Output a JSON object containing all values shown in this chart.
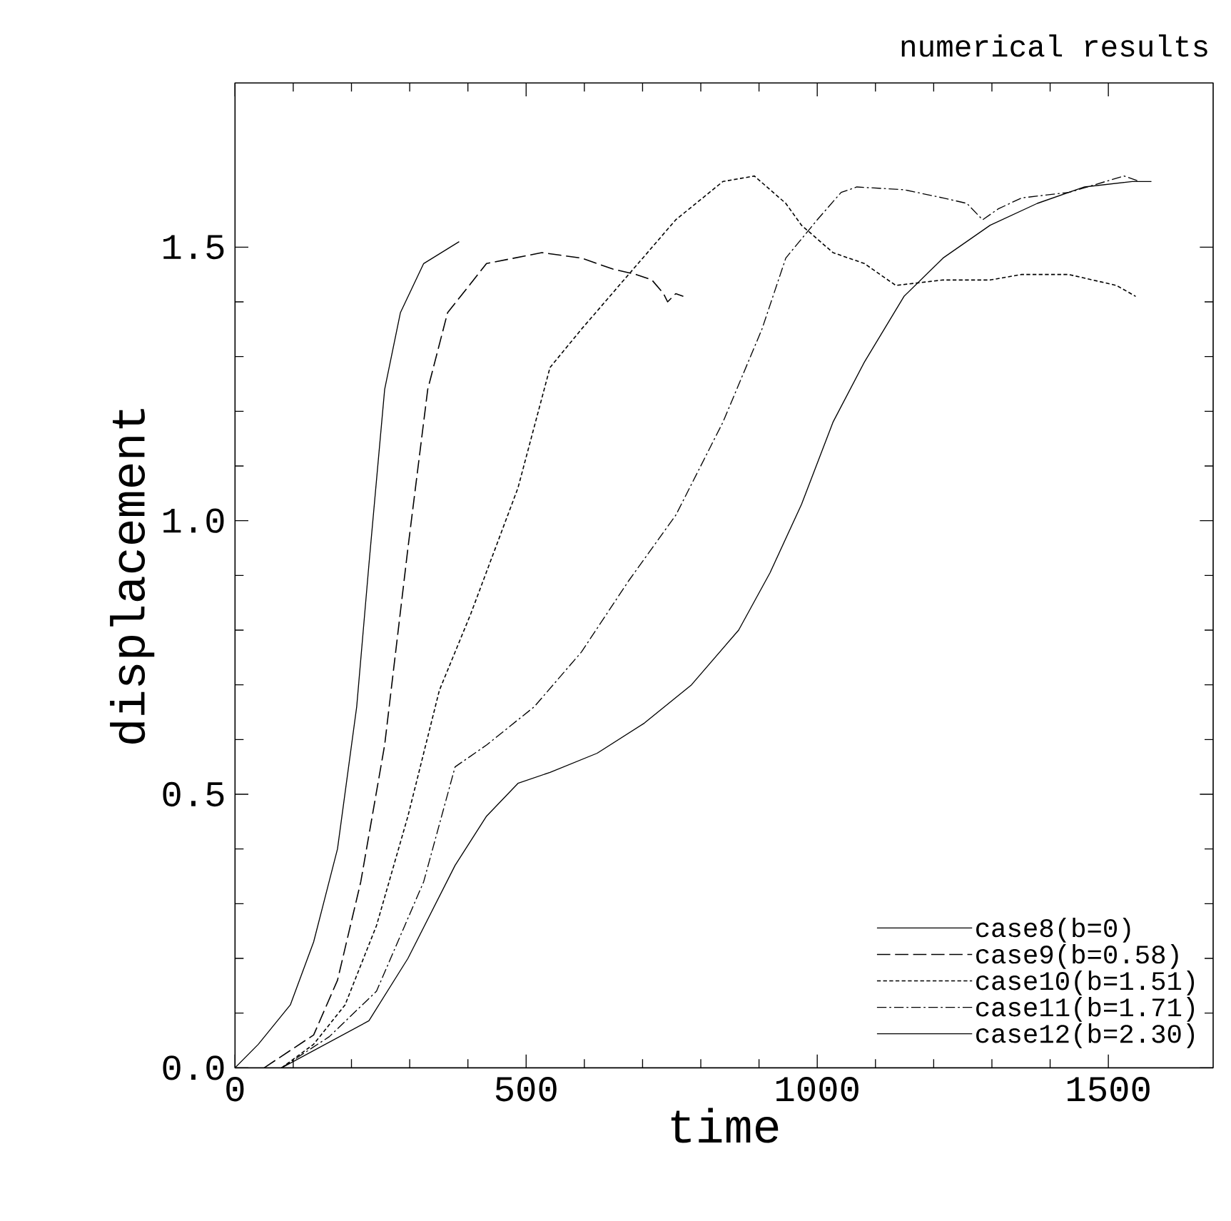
{
  "chart_data": {
    "type": "line",
    "title": "numerical results",
    "xlabel": "time",
    "ylabel": "displacement",
    "xlim": [
      0,
      1680
    ],
    "ylim": [
      0,
      1.8
    ],
    "xticks": [
      0,
      500,
      1000,
      1500
    ],
    "yticks": [
      {
        "value": 0,
        "label": "0.0"
      },
      {
        "value": 0.5,
        "label": "0.5"
      },
      {
        "value": 1.0,
        "label": "1.0"
      },
      {
        "value": 1.5,
        "label": "1.5"
      }
    ],
    "grid": false,
    "legend": "bottom right",
    "marker": "none",
    "series": [
      {
        "name": "case8(b=0)",
        "color": "#000000",
        "line_style": "solid",
        "x": [
          0,
          40,
          95,
          135,
          176,
          209,
          230,
          257,
          284,
          324,
          385
        ],
        "values": [
          0,
          0.043,
          0.115,
          0.23,
          0.4,
          0.66,
          0.92,
          1.24,
          1.38,
          1.47,
          1.51
        ]
      },
      {
        "name": "case9(b=0.58)",
        "color": "#000000",
        "line_style": "long dashed",
        "x": [
          50,
          135,
          176,
          216,
          257,
          297,
          331,
          365,
          432,
          527,
          595,
          649,
          689,
          716,
          736,
          743,
          757,
          770
        ],
        "values": [
          0,
          0.06,
          0.16,
          0.34,
          0.59,
          0.95,
          1.24,
          1.38,
          1.47,
          1.49,
          1.48,
          1.46,
          1.45,
          1.44,
          1.415,
          1.4,
          1.415,
          1.41
        ]
      },
      {
        "name": "case10(b=1.51)",
        "color": "#000000",
        "line_style": "dashed",
        "x": [
          80,
          135,
          189,
          243,
          297,
          351,
          405,
          486,
          541,
          595,
          676,
          757,
          838,
          892,
          946,
          973,
          1027,
          1081,
          1135,
          1216,
          1297,
          1351,
          1432,
          1514,
          1547
        ],
        "values": [
          0,
          0.043,
          0.115,
          0.26,
          0.46,
          0.69,
          0.83,
          1.06,
          1.28,
          1.35,
          1.45,
          1.55,
          1.62,
          1.63,
          1.58,
          1.54,
          1.49,
          1.47,
          1.43,
          1.44,
          1.44,
          1.45,
          1.45,
          1.43,
          1.41
        ]
      },
      {
        "name": "case11(b=1.71)",
        "color": "#000000",
        "line_style": "dash dot",
        "x": [
          80,
          162,
          243,
          324,
          378,
          432,
          514,
          595,
          676,
          757,
          838,
          905,
          946,
          1000,
          1041,
          1068,
          1149,
          1216,
          1257,
          1284,
          1311,
          1351,
          1432,
          1527,
          1554
        ],
        "values": [
          0,
          0.057,
          0.14,
          0.34,
          0.55,
          0.59,
          0.66,
          0.76,
          0.89,
          1.01,
          1.18,
          1.35,
          1.48,
          1.55,
          1.6,
          1.61,
          1.605,
          1.59,
          1.58,
          1.55,
          1.57,
          1.59,
          1.6,
          1.63,
          1.62
        ]
      },
      {
        "name": "case12(b=2.30)",
        "color": "#000000",
        "line_style": "solid",
        "x": [
          80,
          230,
          297,
          378,
          432,
          486,
          541,
          622,
          703,
          784,
          865,
          919,
          973,
          1027,
          1081,
          1149,
          1216,
          1297,
          1378,
          1459,
          1541,
          1574
        ],
        "values": [
          0,
          0.086,
          0.2,
          0.37,
          0.46,
          0.52,
          0.54,
          0.575,
          0.63,
          0.7,
          0.8,
          0.905,
          1.03,
          1.18,
          1.29,
          1.41,
          1.48,
          1.54,
          1.58,
          1.61,
          1.62,
          1.62
        ]
      }
    ]
  }
}
